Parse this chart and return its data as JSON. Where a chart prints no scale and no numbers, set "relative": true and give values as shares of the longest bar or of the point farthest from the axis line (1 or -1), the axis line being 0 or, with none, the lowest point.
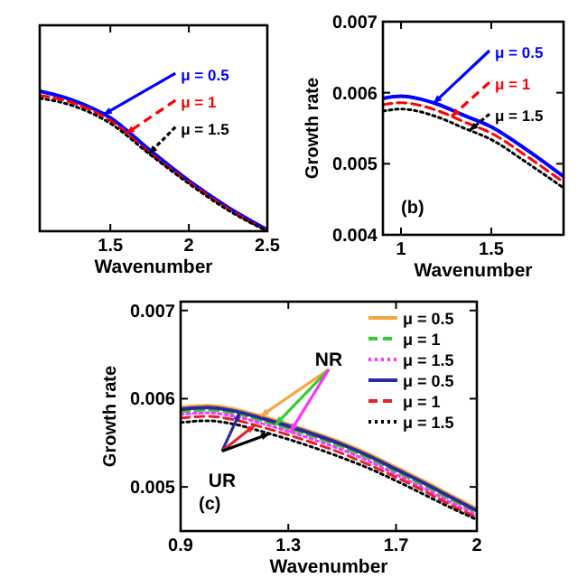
{
  "chart_data": [
    {
      "type": "line",
      "relative": true,
      "xlabel": "Wavenumber",
      "x": [
        1.05,
        1.25,
        1.5,
        1.75,
        2,
        2.25,
        2.5
      ],
      "xlim": [
        1.05,
        2.5
      ],
      "xticks": [
        1.5,
        2,
        2.5
      ],
      "tick_labels": "x",
      "series": [
        {
          "name": "μ = 0.5",
          "color": "#0000ff",
          "line_style": "solid",
          "values": [
            1,
            0.94,
            0.81,
            0.58,
            0.36,
            0.17,
            0.01
          ]
        },
        {
          "name": "μ = 1",
          "color": "#ff0000",
          "line_style": "dashed",
          "values": [
            0.97,
            0.92,
            0.79,
            0.56,
            0.35,
            0.16,
            0
          ]
        },
        {
          "name": "μ = 1.5",
          "color": "#000000",
          "line_style": "dotted",
          "values": [
            0.95,
            0.9,
            0.77,
            0.55,
            0.34,
            0.15,
            0
          ]
        }
      ]
    },
    {
      "type": "line",
      "xlabel": "Wavenumber",
      "ylabel": "Growth rate",
      "annotations": [
        "(b)"
      ],
      "x": [
        0.9,
        1,
        1.2,
        1.35,
        1.5,
        1.7,
        1.9
      ],
      "xlim": [
        0.9,
        1.9
      ],
      "xticks": [
        1,
        1.5
      ],
      "ylim": [
        0.004,
        0.007
      ],
      "yticks": [
        0.004,
        0.005,
        0.006,
        0.007
      ],
      "series": [
        {
          "name": "μ = 0.5",
          "color": "#0000ff",
          "line_style": "solid",
          "values": [
            0.00592,
            0.00595,
            0.00584,
            0.00568,
            0.00552,
            0.00519,
            0.00482
          ]
        },
        {
          "name": "μ = 1",
          "color": "#ff0000",
          "line_style": "dashed",
          "values": [
            0.00583,
            0.00586,
            0.00575,
            0.00559,
            0.00543,
            0.0051,
            0.00474
          ]
        },
        {
          "name": "μ = 1.5",
          "color": "#000000",
          "line_style": "dotted",
          "values": [
            0.00574,
            0.00577,
            0.00566,
            0.0055,
            0.00534,
            0.00501,
            0.00466
          ]
        }
      ]
    },
    {
      "type": "line",
      "xlabel": "Wavenumber",
      "ylabel": "Growth rate",
      "legend": "top right",
      "annotations": [
        "(c)",
        "NR",
        "UR"
      ],
      "x": [
        0.9,
        1,
        1.1,
        1.2,
        1.3,
        1.4,
        1.5,
        1.6,
        1.7,
        1.8,
        1.9,
        2
      ],
      "xlim": [
        0.9,
        2
      ],
      "xticks": [
        0.9,
        1.3,
        1.7,
        2
      ],
      "ylim": [
        0.0045,
        0.0071
      ],
      "yticks": [
        0.005,
        0.006,
        0.007
      ],
      "series": [
        {
          "name": "μ = 0.5",
          "color": "#f4a641",
          "line_style": "solid",
          "values": [
            0.0059,
            0.00592,
            0.00588,
            0.0058,
            0.00571,
            0.00561,
            0.0055,
            0.00537,
            0.00522,
            0.00507,
            0.00491,
            0.00475
          ]
        },
        {
          "name": "μ = 1",
          "color": "#33cc33",
          "line_style": "dashed",
          "values": [
            0.00585,
            0.00587,
            0.00583,
            0.00575,
            0.00566,
            0.00556,
            0.00545,
            0.00532,
            0.00517,
            0.00502,
            0.00486,
            0.00471
          ]
        },
        {
          "name": "μ = 1.5",
          "color": "#ff33ff",
          "line_style": "dotted",
          "values": [
            0.00582,
            0.00584,
            0.0058,
            0.00572,
            0.00563,
            0.00553,
            0.00542,
            0.00529,
            0.00514,
            0.00499,
            0.00483,
            0.00468
          ]
        },
        {
          "name": "μ = 0.5",
          "color": "#2a2a9c",
          "line_style": "solid",
          "values": [
            0.00588,
            0.0059,
            0.00586,
            0.00578,
            0.00569,
            0.00559,
            0.00548,
            0.00535,
            0.0052,
            0.00505,
            0.00489,
            0.00473
          ]
        },
        {
          "name": "μ = 1",
          "color": "#e8202a",
          "line_style": "dashed",
          "values": [
            0.00578,
            0.0058,
            0.00576,
            0.00568,
            0.00559,
            0.00549,
            0.00538,
            0.00525,
            0.00511,
            0.00496,
            0.0048,
            0.00465
          ]
        },
        {
          "name": "μ = 1.5",
          "color": "#000000",
          "line_style": "dotted",
          "values": [
            0.00573,
            0.00575,
            0.00571,
            0.00563,
            0.00554,
            0.00544,
            0.00533,
            0.00521,
            0.00507,
            0.00492,
            0.00477,
            0.00463
          ]
        }
      ]
    }
  ]
}
